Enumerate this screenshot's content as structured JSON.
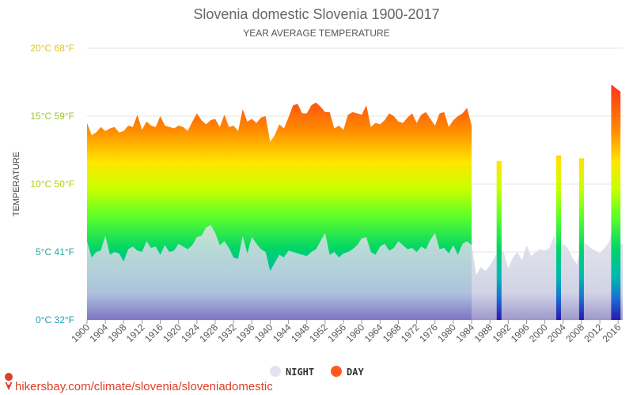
{
  "chart_data": {
    "type": "area",
    "title": "Slovenia domestic Slovenia 1900-2017",
    "subtitle": "YEAR AVERAGE TEMPERATURE",
    "ylabel": "TEMPERATURE",
    "y_tick_labels": [
      "0°C 32°F",
      "5°C 41°F",
      "10°C 50°F",
      "15°C 59°F",
      "20°C 68°F"
    ],
    "y_tick_values": [
      0,
      5,
      10,
      15,
      20
    ],
    "ylim": [
      0,
      20
    ],
    "x_tick_labels": [
      "1900",
      "1904",
      "1908",
      "1912",
      "1916",
      "1920",
      "1924",
      "1928",
      "1932",
      "1936",
      "1940",
      "1944",
      "1948",
      "1952",
      "1956",
      "1960",
      "1964",
      "1968",
      "1972",
      "1976",
      "1980",
      "1984",
      "1988",
      "1992",
      "1996",
      "2000",
      "2004",
      "2008",
      "2012",
      "2016"
    ],
    "xlim": [
      1900,
      2017
    ],
    "grid": true,
    "legend_position": "bottom-center",
    "colors": {
      "night": "#d5d9e6",
      "day": "#ff5a1f",
      "gradient_top": "#ff1a1a",
      "gradient_bottom": "#2a1fb8"
    },
    "series": [
      {
        "name": "DAY",
        "x": [
          1900,
          1901,
          1902,
          1903,
          1904,
          1905,
          1906,
          1907,
          1908,
          1909,
          1910,
          1911,
          1912,
          1913,
          1914,
          1915,
          1916,
          1917,
          1918,
          1919,
          1920,
          1921,
          1922,
          1923,
          1924,
          1925,
          1926,
          1927,
          1928,
          1929,
          1930,
          1931,
          1932,
          1933,
          1934,
          1935,
          1936,
          1937,
          1938,
          1939,
          1940,
          1941,
          1942,
          1943,
          1944,
          1945,
          1946,
          1947,
          1948,
          1949,
          1950,
          1951,
          1952,
          1953,
          1954,
          1955,
          1956,
          1957,
          1958,
          1959,
          1960,
          1961,
          1962,
          1963,
          1964,
          1965,
          1966,
          1967,
          1968,
          1969,
          1970,
          1971,
          1972,
          1973,
          1974,
          1975,
          1976,
          1977,
          1978,
          1979,
          1980,
          1981,
          1982,
          1983,
          1984,
          1990,
          2003,
          2008,
          2015,
          2016
        ],
        "values": [
          14.5,
          13.6,
          13.8,
          14.2,
          13.9,
          14.1,
          14.2,
          13.8,
          13.9,
          14.3,
          14.2,
          15.1,
          14.0,
          14.6,
          14.3,
          14.2,
          15.0,
          14.3,
          14.2,
          14.1,
          14.3,
          14.2,
          13.9,
          14.6,
          15.2,
          14.7,
          14.4,
          14.7,
          14.8,
          14.2,
          15.1,
          14.2,
          14.3,
          13.9,
          15.5,
          14.6,
          14.8,
          14.5,
          14.9,
          15.0,
          13.1,
          13.6,
          14.4,
          14.1,
          14.9,
          15.8,
          15.9,
          15.2,
          15.2,
          15.8,
          16.0,
          15.7,
          15.3,
          15.3,
          14.1,
          14.3,
          14.0,
          15.1,
          15.3,
          15.2,
          15.1,
          15.8,
          14.2,
          14.5,
          14.4,
          14.7,
          15.2,
          15.0,
          14.6,
          14.5,
          14.9,
          15.2,
          14.5,
          15.1,
          15.3,
          14.8,
          14.3,
          15.2,
          15.3,
          14.2,
          14.7,
          15.0,
          15.2,
          15.6,
          14.3,
          11.7,
          12.1,
          11.9,
          17.3,
          16.8
        ]
      },
      {
        "name": "NIGHT",
        "x": [
          1900,
          1901,
          1902,
          1903,
          1904,
          1905,
          1906,
          1907,
          1908,
          1909,
          1910,
          1911,
          1912,
          1913,
          1914,
          1915,
          1916,
          1917,
          1918,
          1919,
          1920,
          1921,
          1922,
          1923,
          1924,
          1925,
          1926,
          1927,
          1928,
          1929,
          1930,
          1931,
          1932,
          1933,
          1934,
          1935,
          1936,
          1937,
          1938,
          1939,
          1940,
          1941,
          1942,
          1943,
          1944,
          1945,
          1946,
          1947,
          1948,
          1949,
          1950,
          1951,
          1952,
          1953,
          1954,
          1955,
          1956,
          1957,
          1958,
          1959,
          1960,
          1961,
          1962,
          1963,
          1964,
          1965,
          1966,
          1967,
          1968,
          1969,
          1970,
          1971,
          1972,
          1973,
          1974,
          1975,
          1976,
          1977,
          1978,
          1979,
          1980,
          1981,
          1982,
          1983,
          1984,
          1985,
          1986,
          1987,
          1988,
          1989,
          1990,
          1991,
          1992,
          1993,
          1994,
          1995,
          1996,
          1997,
          1998,
          1999,
          2000,
          2001,
          2002,
          2003,
          2004,
          2005,
          2006,
          2007,
          2008,
          2009,
          2010,
          2011,
          2012,
          2013,
          2014,
          2015,
          2016,
          2017
        ],
        "values": [
          5.8,
          4.6,
          5.0,
          5.1,
          6.2,
          4.8,
          5.0,
          4.9,
          4.3,
          5.2,
          5.4,
          5.1,
          5.0,
          5.8,
          5.3,
          5.4,
          4.8,
          5.5,
          5.0,
          5.1,
          5.6,
          5.4,
          5.2,
          5.5,
          6.1,
          6.2,
          6.8,
          7.0,
          6.4,
          5.5,
          5.8,
          5.3,
          4.6,
          4.5,
          6.2,
          4.9,
          6.1,
          5.6,
          5.2,
          5.0,
          3.6,
          4.2,
          4.8,
          4.6,
          5.1,
          5.0,
          4.9,
          4.8,
          4.7,
          5.0,
          5.2,
          5.8,
          6.4,
          4.8,
          5.0,
          4.6,
          4.9,
          5.0,
          5.2,
          5.5,
          6.0,
          6.1,
          5.0,
          4.8,
          5.4,
          5.6,
          5.1,
          5.3,
          5.8,
          5.5,
          5.2,
          5.3,
          5.0,
          5.4,
          5.2,
          5.9,
          6.4,
          5.2,
          5.3,
          4.9,
          5.5,
          4.8,
          5.6,
          5.8,
          5.5,
          3.3,
          3.9,
          3.6,
          4.0,
          4.6,
          5.3,
          5.0,
          3.8,
          4.6,
          5.0,
          4.4,
          5.5,
          4.7,
          5.0,
          5.2,
          5.1,
          5.3,
          6.2,
          5.0,
          5.6,
          5.3,
          4.6,
          4.1,
          5.8,
          5.6,
          5.3,
          5.1,
          4.9,
          5.3,
          5.7,
          7.0,
          5.6,
          5.6
        ]
      }
    ]
  },
  "legend": {
    "night_label": "NIGHT",
    "day_label": "DAY"
  },
  "source_text": "hikersbay.com/climate/slovenia/sloveniadomestic"
}
